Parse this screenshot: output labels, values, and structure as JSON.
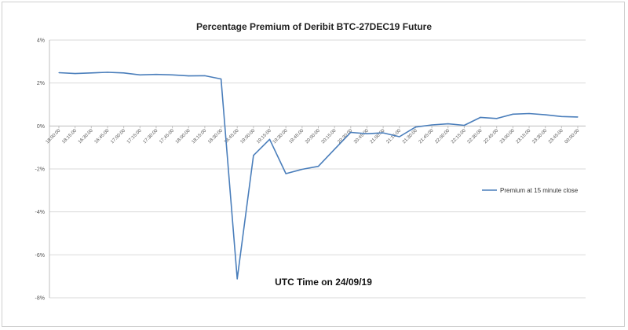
{
  "chart_data": {
    "type": "line",
    "title": "Percentage Premium of Deribit BTC-27DEC19 Future",
    "xlabel": "",
    "ylabel": "",
    "ylim": [
      -8,
      4
    ],
    "y_ticks": [
      "4%",
      "2%",
      "0%",
      "-2%",
      "-4%",
      "-6%",
      "-8%"
    ],
    "y_tick_values": [
      4,
      2,
      0,
      -2,
      -4,
      -6,
      -8
    ],
    "grid": true,
    "legend": "right",
    "annotation": "UTC Time on 24/09/19",
    "categories": [
      "18:00:00",
      "18:15:00",
      "16:30:00",
      "16:45:00",
      "17:00:00",
      "17:15:00",
      "17:30:00",
      "17:45:00",
      "18:00:00",
      "18:15:00",
      "18:30:00",
      "18:45:00",
      "19:00:00",
      "19:15:00",
      "19:30:00",
      "19:45:00",
      "20:00:00",
      "20:15:00",
      "20:30:00",
      "20:45:00",
      "21:00:00",
      "21:15:00",
      "21:30:00",
      "21:45:00",
      "22:00:00",
      "22:15:00",
      "22:30:00",
      "22:45:00",
      "23:00:00",
      "23:15:00",
      "23:30:00",
      "23:45:00",
      "00:00:00"
    ],
    "series": [
      {
        "name": "Premium at 15 minute close",
        "color": "#4a7ebb",
        "values": [
          2.48,
          2.44,
          2.47,
          2.5,
          2.47,
          2.38,
          2.4,
          2.38,
          2.33,
          2.34,
          2.19,
          -7.12,
          -1.37,
          -0.62,
          -2.22,
          -2.02,
          -1.88,
          -1.08,
          -0.3,
          -0.36,
          -0.32,
          -0.5,
          -0.05,
          0.05,
          0.1,
          0.03,
          0.4,
          0.35,
          0.55,
          0.58,
          0.52,
          0.44,
          0.42
        ]
      }
    ]
  }
}
